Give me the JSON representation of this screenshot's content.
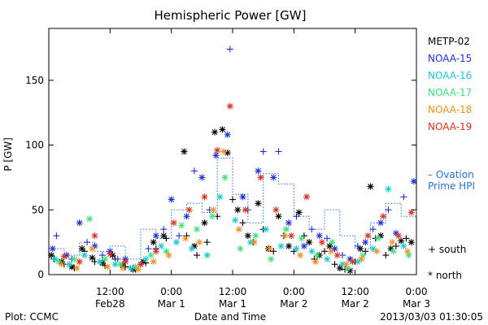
{
  "chart_data": {
    "type": "scatter",
    "title": "Hemispheric Power [GW]",
    "xlabel": "Date and Time",
    "ylabel": "P [GW]",
    "ylim": [
      0,
      190
    ],
    "xlim": [
      "2013-02-28T00:00",
      "2013-03-03T00:00"
    ],
    "grid": false,
    "y_ticks": [
      0,
      50,
      100,
      150
    ],
    "x_ticks": [
      {
        "t": "2013-02-28T12:00",
        "time": "12:00",
        "date": "Feb28"
      },
      {
        "t": "2013-03-01T00:00",
        "time": "0:00",
        "date": "Mar 1"
      },
      {
        "t": "2013-03-01T12:00",
        "time": "12:00",
        "date": "Mar 1"
      },
      {
        "t": "2013-03-02T00:00",
        "time": "0:00",
        "date": "Mar 2"
      },
      {
        "t": "2013-03-02T12:00",
        "time": "12:00",
        "date": "Mar 2"
      },
      {
        "t": "2013-03-03T00:00",
        "time": "0:00",
        "date": "Mar 3"
      }
    ],
    "legend_position": "right",
    "series": [
      {
        "name": "METP-02",
        "color": "#000000",
        "hemisphere": "north",
        "points": [
          [
            "2013-02-28T00:30",
            15
          ],
          [
            "2013-02-28T02:30",
            10
          ],
          [
            "2013-02-28T04:30",
            6
          ],
          [
            "2013-02-28T06:30",
            20
          ],
          [
            "2013-02-28T08:30",
            13
          ],
          [
            "2013-02-28T10:30",
            9
          ],
          [
            "2013-02-28T12:30",
            15
          ],
          [
            "2013-02-28T14:30",
            7
          ],
          [
            "2013-02-28T16:30",
            4
          ],
          [
            "2013-02-28T18:30",
            10
          ],
          [
            "2013-02-28T20:30",
            25
          ],
          [
            "2013-02-28T22:30",
            30
          ],
          [
            "2013-03-01T02:30",
            95
          ],
          [
            "2013-03-01T04:30",
            22
          ],
          [
            "2013-03-01T06:30",
            40
          ],
          [
            "2013-03-01T08:30",
            110
          ],
          [
            "2013-03-01T10:00",
            112
          ],
          [
            "2013-03-01T11:00",
            94
          ],
          [
            "2013-03-01T13:00",
            50
          ],
          [
            "2013-03-01T15:00",
            30
          ],
          [
            "2013-03-01T17:00",
            55
          ],
          [
            "2013-03-01T19:00",
            20
          ],
          [
            "2013-03-01T21:00",
            45
          ],
          [
            "2013-03-01T23:00",
            22
          ],
          [
            "2013-03-02T01:00",
            48
          ],
          [
            "2013-03-02T03:00",
            25
          ],
          [
            "2013-03-02T05:00",
            15
          ],
          [
            "2013-03-02T07:00",
            22
          ],
          [
            "2013-03-02T09:00",
            5
          ],
          [
            "2013-03-02T11:00",
            3
          ],
          [
            "2013-03-02T13:00",
            20
          ],
          [
            "2013-03-02T15:00",
            68
          ],
          [
            "2013-03-02T17:00",
            30
          ],
          [
            "2013-03-02T19:00",
            20
          ],
          [
            "2013-03-02T21:00",
            26
          ],
          [
            "2013-03-02T23:00",
            25
          ]
        ]
      },
      {
        "name": "METP-02",
        "color": "#000000",
        "hemisphere": "south",
        "points": [
          [
            "2013-02-28T01:00",
            12
          ],
          [
            "2013-02-28T03:00",
            8
          ],
          [
            "2013-02-28T05:00",
            5
          ],
          [
            "2013-02-28T07:00",
            18
          ],
          [
            "2013-02-28T09:00",
            10
          ],
          [
            "2013-02-28T11:00",
            7
          ],
          [
            "2013-02-28T13:00",
            12
          ],
          [
            "2013-02-28T15:00",
            6
          ],
          [
            "2013-02-28T17:00",
            4
          ],
          [
            "2013-02-28T19:00",
            9
          ],
          [
            "2013-02-28T21:00",
            20
          ],
          [
            "2013-02-28T23:00",
            28
          ],
          [
            "2013-03-01T03:00",
            30
          ],
          [
            "2013-03-01T05:00",
            15
          ],
          [
            "2013-03-01T07:00",
            25
          ],
          [
            "2013-03-01T09:00",
            45
          ],
          [
            "2013-03-01T12:00",
            58
          ],
          [
            "2013-03-01T14:00",
            40
          ],
          [
            "2013-03-01T16:00",
            25
          ],
          [
            "2013-03-01T18:00",
            35
          ],
          [
            "2013-03-01T20:00",
            18
          ],
          [
            "2013-03-01T22:00",
            30
          ],
          [
            "2013-03-02T00:00",
            18
          ],
          [
            "2013-03-02T02:00",
            30
          ],
          [
            "2013-03-02T04:00",
            12
          ],
          [
            "2013-03-02T06:00",
            18
          ],
          [
            "2013-03-02T08:00",
            8
          ],
          [
            "2013-03-02T10:00",
            4
          ],
          [
            "2013-03-02T12:00",
            10
          ],
          [
            "2013-03-02T14:00",
            18
          ],
          [
            "2013-03-02T16:00",
            28
          ],
          [
            "2013-03-02T18:00",
            15
          ],
          [
            "2013-03-02T20:00",
            22
          ],
          [
            "2013-03-02T22:00",
            28
          ]
        ]
      },
      {
        "name": "NOAA-15",
        "color": "#1f2fd6",
        "hemisphere": "north",
        "points": [
          [
            "2013-02-28T00:45",
            20
          ],
          [
            "2013-02-28T03:30",
            15
          ],
          [
            "2013-02-28T06:00",
            40
          ],
          [
            "2013-02-28T09:00",
            22
          ],
          [
            "2013-02-28T12:00",
            18
          ],
          [
            "2013-02-28T15:00",
            12
          ],
          [
            "2013-02-28T18:00",
            8
          ],
          [
            "2013-02-28T21:00",
            30
          ],
          [
            "2013-03-01T00:00",
            58
          ],
          [
            "2013-03-01T03:00",
            45
          ],
          [
            "2013-03-01T06:00",
            75
          ],
          [
            "2013-03-01T08:45",
            92
          ],
          [
            "2013-03-01T11:00",
            108
          ],
          [
            "2013-03-01T14:00",
            60
          ],
          [
            "2013-03-01T17:00",
            80
          ],
          [
            "2013-03-01T20:00",
            75
          ],
          [
            "2013-03-01T23:00",
            40
          ],
          [
            "2013-03-02T02:00",
            22
          ],
          [
            "2013-03-02T05:00",
            30
          ],
          [
            "2013-03-02T08:00",
            20
          ],
          [
            "2013-03-02T11:00",
            12
          ],
          [
            "2013-03-02T14:00",
            25
          ],
          [
            "2013-03-02T17:00",
            40
          ],
          [
            "2013-03-02T20:00",
            32
          ],
          [
            "2013-03-02T23:30",
            72
          ]
        ]
      },
      {
        "name": "NOAA-15",
        "color": "#1f2fd6",
        "hemisphere": "south",
        "points": [
          [
            "2013-02-28T01:30",
            30
          ],
          [
            "2013-02-28T04:30",
            12
          ],
          [
            "2013-02-28T07:30",
            25
          ],
          [
            "2013-02-28T10:30",
            15
          ],
          [
            "2013-02-28T13:30",
            12
          ],
          [
            "2013-02-28T16:30",
            5
          ],
          [
            "2013-02-28T19:30",
            20
          ],
          [
            "2013-02-28T22:30",
            35
          ],
          [
            "2013-03-01T01:30",
            30
          ],
          [
            "2013-03-01T04:30",
            80
          ],
          [
            "2013-03-01T07:30",
            50
          ],
          [
            "2013-03-01T11:30",
            174
          ],
          [
            "2013-03-01T15:00",
            50
          ],
          [
            "2013-03-01T18:00",
            95
          ],
          [
            "2013-03-01T21:00",
            95
          ],
          [
            "2013-03-02T00:30",
            45
          ],
          [
            "2013-03-02T03:30",
            35
          ],
          [
            "2013-03-02T06:30",
            28
          ],
          [
            "2013-03-02T09:30",
            15
          ],
          [
            "2013-03-02T12:30",
            22
          ],
          [
            "2013-03-02T15:30",
            35
          ],
          [
            "2013-03-02T18:30",
            50
          ],
          [
            "2013-03-02T21:30",
            60
          ]
        ]
      },
      {
        "name": "NOAA-16",
        "color": "#19c7d6",
        "hemisphere": "north",
        "points": [
          [
            "2013-02-28T01:15",
            12
          ],
          [
            "2013-02-28T04:00",
            8
          ],
          [
            "2013-02-28T07:00",
            15
          ],
          [
            "2013-02-28T10:00",
            10
          ],
          [
            "2013-02-28T13:00",
            8
          ],
          [
            "2013-02-28T16:00",
            5
          ],
          [
            "2013-02-28T19:00",
            12
          ],
          [
            "2013-02-28T22:00",
            22
          ],
          [
            "2013-03-01T01:00",
            25
          ],
          [
            "2013-03-01T04:00",
            20
          ],
          [
            "2013-03-01T07:00",
            15
          ],
          [
            "2013-03-01T09:30",
            60
          ],
          [
            "2013-03-01T12:30",
            42
          ],
          [
            "2013-03-01T15:30",
            25
          ],
          [
            "2013-03-01T18:30",
            35
          ],
          [
            "2013-03-01T21:30",
            22
          ],
          [
            "2013-03-02T00:30",
            20
          ],
          [
            "2013-03-02T03:30",
            18
          ],
          [
            "2013-03-02T06:30",
            12
          ],
          [
            "2013-03-02T09:30",
            8
          ],
          [
            "2013-03-02T12:30",
            10
          ],
          [
            "2013-03-02T15:30",
            20
          ],
          [
            "2013-03-02T18:30",
            66
          ],
          [
            "2013-03-02T21:30",
            22
          ]
        ]
      },
      {
        "name": "NOAA-17",
        "color": "#3fe07a",
        "hemisphere": "north",
        "points": [
          [
            "2013-02-28T02:00",
            10
          ],
          [
            "2013-02-28T05:00",
            12
          ],
          [
            "2013-02-28T08:00",
            43
          ],
          [
            "2013-02-28T11:00",
            12
          ],
          [
            "2013-02-28T14:00",
            8
          ],
          [
            "2013-02-28T17:00",
            6
          ],
          [
            "2013-02-28T20:00",
            15
          ],
          [
            "2013-02-28T23:00",
            18
          ],
          [
            "2013-03-01T02:00",
            38
          ],
          [
            "2013-03-01T05:00",
            35
          ],
          [
            "2013-03-01T08:00",
            45
          ],
          [
            "2013-03-01T10:30",
            75
          ],
          [
            "2013-03-01T13:30",
            20
          ],
          [
            "2013-03-01T16:30",
            30
          ],
          [
            "2013-03-01T19:30",
            12
          ],
          [
            "2013-03-01T22:30",
            35
          ],
          [
            "2013-03-02T01:30",
            28
          ],
          [
            "2013-03-02T04:30",
            15
          ],
          [
            "2013-03-02T07:30",
            25
          ],
          [
            "2013-03-02T10:30",
            5
          ],
          [
            "2013-03-02T13:30",
            15
          ],
          [
            "2013-03-02T16:30",
            28
          ],
          [
            "2013-03-02T19:30",
            18
          ],
          [
            "2013-03-02T22:30",
            15
          ]
        ]
      },
      {
        "name": "NOAA-18",
        "color": "#f0921e",
        "hemisphere": "north",
        "points": [
          [
            "2013-02-28T02:30",
            8
          ],
          [
            "2013-02-28T05:30",
            5
          ],
          [
            "2013-02-28T08:30",
            20
          ],
          [
            "2013-02-28T11:30",
            6
          ],
          [
            "2013-02-28T14:30",
            5
          ],
          [
            "2013-02-28T17:30",
            4
          ],
          [
            "2013-02-28T20:30",
            10
          ],
          [
            "2013-02-28T23:30",
            15
          ],
          [
            "2013-03-01T02:45",
            28
          ],
          [
            "2013-03-01T05:30",
            25
          ],
          [
            "2013-03-01T08:15",
            50
          ],
          [
            "2013-03-01T10:15",
            95
          ],
          [
            "2013-03-01T13:15",
            35
          ],
          [
            "2013-03-01T16:15",
            25
          ],
          [
            "2013-03-01T19:15",
            20
          ],
          [
            "2013-03-01T22:15",
            30
          ],
          [
            "2013-03-02T01:15",
            15
          ],
          [
            "2013-03-02T04:15",
            10
          ],
          [
            "2013-03-02T07:15",
            18
          ],
          [
            "2013-03-02T10:15",
            8
          ],
          [
            "2013-03-02T13:15",
            12
          ],
          [
            "2013-03-02T16:15",
            18
          ],
          [
            "2013-03-02T19:15",
            25
          ],
          [
            "2013-03-02T22:15",
            18
          ]
        ]
      },
      {
        "name": "NOAA-19",
        "color": "#dc2f1e",
        "hemisphere": "north",
        "points": [
          [
            "2013-02-28T03:00",
            14
          ],
          [
            "2013-02-28T06:00",
            10
          ],
          [
            "2013-02-28T09:00",
            30
          ],
          [
            "2013-02-28T12:00",
            16
          ],
          [
            "2013-02-28T15:00",
            10
          ],
          [
            "2013-02-28T18:00",
            8
          ],
          [
            "2013-02-28T21:00",
            18
          ],
          [
            "2013-03-01T00:30",
            40
          ],
          [
            "2013-03-01T03:30",
            50
          ],
          [
            "2013-03-01T06:30",
            60
          ],
          [
            "2013-03-01T09:00",
            96
          ],
          [
            "2013-03-01T11:30",
            130
          ],
          [
            "2013-03-01T14:30",
            50
          ],
          [
            "2013-03-01T17:30",
            75
          ],
          [
            "2013-03-01T20:30",
            50
          ],
          [
            "2013-03-01T23:30",
            30
          ],
          [
            "2013-03-02T02:30",
            60
          ],
          [
            "2013-03-02T05:30",
            25
          ],
          [
            "2013-03-02T08:30",
            15
          ],
          [
            "2013-03-02T11:30",
            10
          ],
          [
            "2013-03-02T14:30",
            30
          ],
          [
            "2013-03-02T17:30",
            45
          ],
          [
            "2013-03-02T20:30",
            30
          ],
          [
            "2013-03-02T23:00",
            48
          ]
        ]
      }
    ],
    "ovation_prime_hpi": {
      "name": "– Ovation Prime HPI",
      "color": "#2a6fdb",
      "points": [
        [
          "2013-02-28T00:00",
          20
        ],
        [
          "2013-02-28T03:00",
          15
        ],
        [
          "2013-02-28T06:00",
          25
        ],
        [
          "2013-02-28T09:00",
          18
        ],
        [
          "2013-02-28T12:00",
          22
        ],
        [
          "2013-02-28T15:00",
          12
        ],
        [
          "2013-02-28T18:00",
          35
        ],
        [
          "2013-02-28T21:00",
          28
        ],
        [
          "2013-03-01T00:00",
          50
        ],
        [
          "2013-03-01T03:00",
          55
        ],
        [
          "2013-03-01T06:00",
          48
        ],
        [
          "2013-03-01T09:00",
          90
        ],
        [
          "2013-03-01T12:00",
          62
        ],
        [
          "2013-03-01T15:00",
          40
        ],
        [
          "2013-03-01T18:00",
          78
        ],
        [
          "2013-03-01T21:00",
          70
        ],
        [
          "2013-03-02T00:00",
          45
        ],
        [
          "2013-03-02T03:00",
          35
        ],
        [
          "2013-03-02T06:00",
          50
        ],
        [
          "2013-03-02T09:00",
          30
        ],
        [
          "2013-03-02T12:00",
          20
        ],
        [
          "2013-03-02T15:00",
          40
        ],
        [
          "2013-03-02T18:00",
          55
        ],
        [
          "2013-03-02T21:00",
          45
        ],
        [
          "2013-03-03T00:00",
          50
        ]
      ]
    },
    "marker_key": {
      "south": "+ south",
      "north": "* north"
    }
  },
  "footer": {
    "left": "Plot: CCMC",
    "center": "Date and Time",
    "right": "2013/03/03 01:30:05"
  },
  "legend": {
    "entries": [
      {
        "label": "METP-02",
        "color": "#000000"
      },
      {
        "label": "NOAA-15",
        "color": "#1f2fd6"
      },
      {
        "label": "NOAA-16",
        "color": "#19c7d6"
      },
      {
        "label": "NOAA-17",
        "color": "#3fe07a"
      },
      {
        "label": "NOAA-18",
        "color": "#f0921e"
      },
      {
        "label": "NOAA-19",
        "color": "#dc2f1e"
      }
    ],
    "ovation_line1": "– Ovation",
    "ovation_line2": "Prime HPI",
    "ovation_color": "#2a6fdb"
  }
}
